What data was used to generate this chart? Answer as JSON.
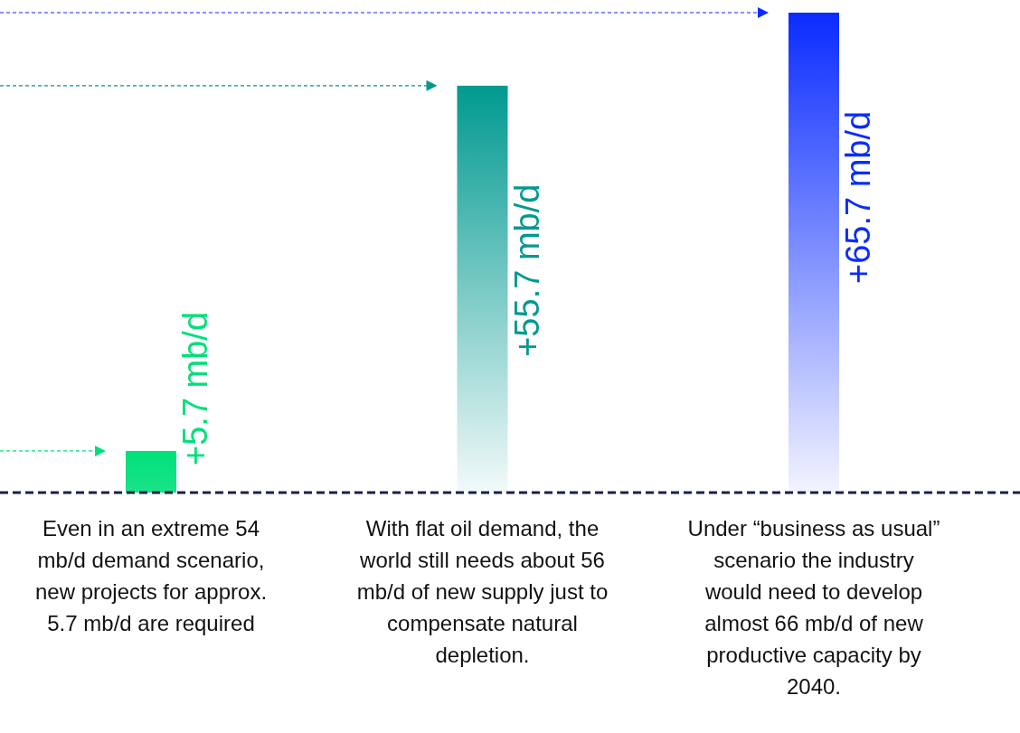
{
  "chart_data": {
    "type": "bar",
    "categories": [
      "Even in an extreme 54 mb/d demand scenario, new projects for approx. 5.7 mb/d are required",
      "With flat oil demand, the world still needs about 56 mb/d of new supply just to compensate natural depletion.",
      "Under “business as usual” scenario the industry would need to develop almost 66 mb/d of new productive capacity by 2040."
    ],
    "values": [
      5.7,
      55.7,
      65.7
    ],
    "colors": [
      "#00e07a",
      "#009990",
      "#0a2bff"
    ],
    "value_labels": [
      "+5.7 mb/d",
      "+55.7 mb/d",
      "+65.7 mb/d"
    ]
  }
}
